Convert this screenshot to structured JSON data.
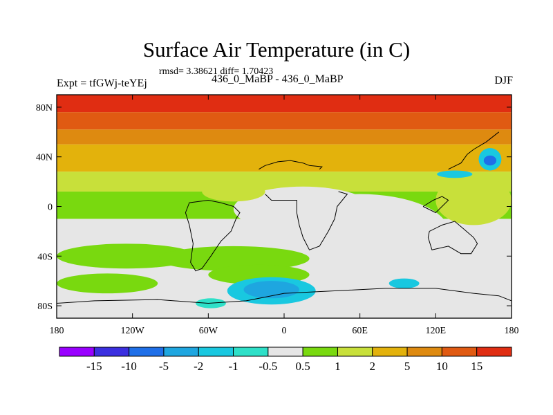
{
  "page": {
    "title": "Surface Air Temperature (in C)",
    "stats": "rmsd= 3.38621 diff= 1.70423",
    "experiment": "Expt = tfGWj-teYEj",
    "case": "436_0_MaBP - 436_0_MaBP",
    "season": "DJF"
  },
  "chart_data": {
    "type": "heatmap",
    "title": "Surface Air Temperature (in C)",
    "subtitle": "rmsd= 3.38621 diff= 1.70423",
    "x": {
      "range": [
        -180,
        180
      ],
      "ticks": [
        -180,
        -120,
        -60,
        0,
        60,
        120,
        180
      ],
      "tick_labels": [
        "180",
        "120W",
        "60W",
        "0",
        "60E",
        "120E",
        "180"
      ]
    },
    "y": {
      "range": [
        -90,
        90
      ],
      "ticks": [
        80,
        40,
        0,
        -40,
        -80
      ],
      "tick_labels": [
        "80N",
        "40N",
        "0",
        "40S",
        "80S"
      ]
    },
    "colorbar": {
      "levels": [
        "-15",
        "-10",
        "-5",
        "-2",
        "-1",
        "-0.5",
        "0.5",
        "1",
        "2",
        "5",
        "10",
        "15"
      ],
      "colors": [
        "#9900ff",
        "#3b2fe0",
        "#1f6fe8",
        "#1ea6e0",
        "#19c8e0",
        "#2ee0c8",
        "#e6e6e6",
        "#79d90f",
        "#c8e03a",
        "#e3b20c",
        "#de8a10",
        "#e05a12",
        "#e02d12"
      ]
    },
    "bands": [
      {
        "lat_from": 90,
        "lat_to": 76,
        "bin": 12
      },
      {
        "lat_from": 76,
        "lat_to": 62,
        "bin": 11
      },
      {
        "lat_from": 62,
        "lat_to": 50,
        "bin": 10
      },
      {
        "lat_from": 50,
        "lat_to": 28,
        "bin": 9
      },
      {
        "lat_from": 28,
        "lat_to": 12,
        "bin": 8
      },
      {
        "lat_from": 12,
        "lat_to": -10,
        "bin": 7
      },
      {
        "lat_from": -10,
        "lat_to": -90,
        "bin": 6
      }
    ],
    "patches": [
      {
        "lon": 15,
        "lat": -2,
        "rx": 55,
        "ry": 18,
        "bin": 6
      },
      {
        "lon": 60,
        "lat": -20,
        "rx": 70,
        "ry": 30,
        "bin": 6
      },
      {
        "lon": -125,
        "lat": -40,
        "rx": 55,
        "ry": 10,
        "bin": 7
      },
      {
        "lon": -40,
        "lat": -42,
        "rx": 60,
        "ry": 10,
        "bin": 7
      },
      {
        "lon": -140,
        "lat": -62,
        "rx": 40,
        "ry": 8,
        "bin": 7
      },
      {
        "lon": -20,
        "lat": -55,
        "rx": 40,
        "ry": 8,
        "bin": 7
      },
      {
        "lon": -40,
        "lat": 12,
        "rx": 25,
        "ry": 8,
        "bin": 8
      },
      {
        "lon": 150,
        "lat": 5,
        "rx": 30,
        "ry": 20,
        "bin": 8
      },
      {
        "lon": -10,
        "lat": -68,
        "rx": 35,
        "ry": 11,
        "bin": 4
      },
      {
        "lon": -10,
        "lat": -67,
        "rx": 22,
        "ry": 7,
        "bin": 3
      },
      {
        "lon": 163,
        "lat": 38,
        "rx": 9,
        "ry": 9,
        "bin": 4
      },
      {
        "lon": 163,
        "lat": 37,
        "rx": 5,
        "ry": 4,
        "bin": 2
      },
      {
        "lon": 135,
        "lat": 26,
        "rx": 14,
        "ry": 3,
        "bin": 4
      },
      {
        "lon": 95,
        "lat": -62,
        "rx": 12,
        "ry": 4,
        "bin": 4
      },
      {
        "lon": -58,
        "lat": -78,
        "rx": 12,
        "ry": 4,
        "bin": 5
      }
    ],
    "coast_paths": [
      [
        [
          -20,
          30
        ],
        [
          -15,
          33
        ],
        [
          -5,
          36
        ],
        [
          5,
          37
        ],
        [
          15,
          35
        ],
        [
          20,
          33
        ],
        [
          30,
          32
        ],
        [
          28,
          30
        ]
      ],
      [
        [
          -60,
          5
        ],
        [
          -50,
          3
        ],
        [
          -40,
          0
        ],
        [
          -35,
          -5
        ],
        [
          -38,
          -10
        ],
        [
          -42,
          -20
        ],
        [
          -50,
          -28
        ],
        [
          -58,
          -40
        ],
        [
          -65,
          -50
        ],
        [
          -70,
          -52
        ],
        [
          -74,
          -45
        ],
        [
          -72,
          -30
        ],
        [
          -75,
          -15
        ],
        [
          -78,
          -5
        ],
        [
          -75,
          3
        ],
        [
          -60,
          5
        ]
      ],
      [
        [
          -15,
          10
        ],
        [
          -10,
          5
        ],
        [
          0,
          5
        ],
        [
          10,
          5
        ],
        [
          10,
          -5
        ],
        [
          12,
          -15
        ],
        [
          15,
          -25
        ],
        [
          20,
          -35
        ],
        [
          28,
          -32
        ],
        [
          35,
          -20
        ],
        [
          40,
          -10
        ],
        [
          42,
          0
        ],
        [
          50,
          10
        ],
        [
          43,
          12
        ]
      ],
      [
        [
          115,
          -20
        ],
        [
          125,
          -15
        ],
        [
          135,
          -12
        ],
        [
          142,
          -18
        ],
        [
          150,
          -25
        ],
        [
          153,
          -30
        ],
        [
          148,
          -38
        ],
        [
          140,
          -38
        ],
        [
          130,
          -32
        ],
        [
          117,
          -35
        ],
        [
          114,
          -25
        ],
        [
          115,
          -20
        ]
      ],
      [
        [
          110,
          0
        ],
        [
          118,
          5
        ],
        [
          125,
          8
        ],
        [
          130,
          5
        ],
        [
          120,
          -5
        ],
        [
          110,
          0
        ]
      ],
      [
        [
          130,
          30
        ],
        [
          140,
          35
        ],
        [
          145,
          42
        ],
        [
          150,
          46
        ],
        [
          160,
          52
        ],
        [
          170,
          60
        ]
      ],
      [
        [
          -180,
          -78
        ],
        [
          -150,
          -76
        ],
        [
          -100,
          -75
        ],
        [
          -60,
          -78
        ],
        [
          -30,
          -76
        ],
        [
          0,
          -70
        ],
        [
          40,
          -68
        ],
        [
          80,
          -66
        ],
        [
          120,
          -66
        ],
        [
          150,
          -70
        ],
        [
          170,
          -72
        ],
        [
          180,
          -76
        ]
      ]
    ]
  }
}
